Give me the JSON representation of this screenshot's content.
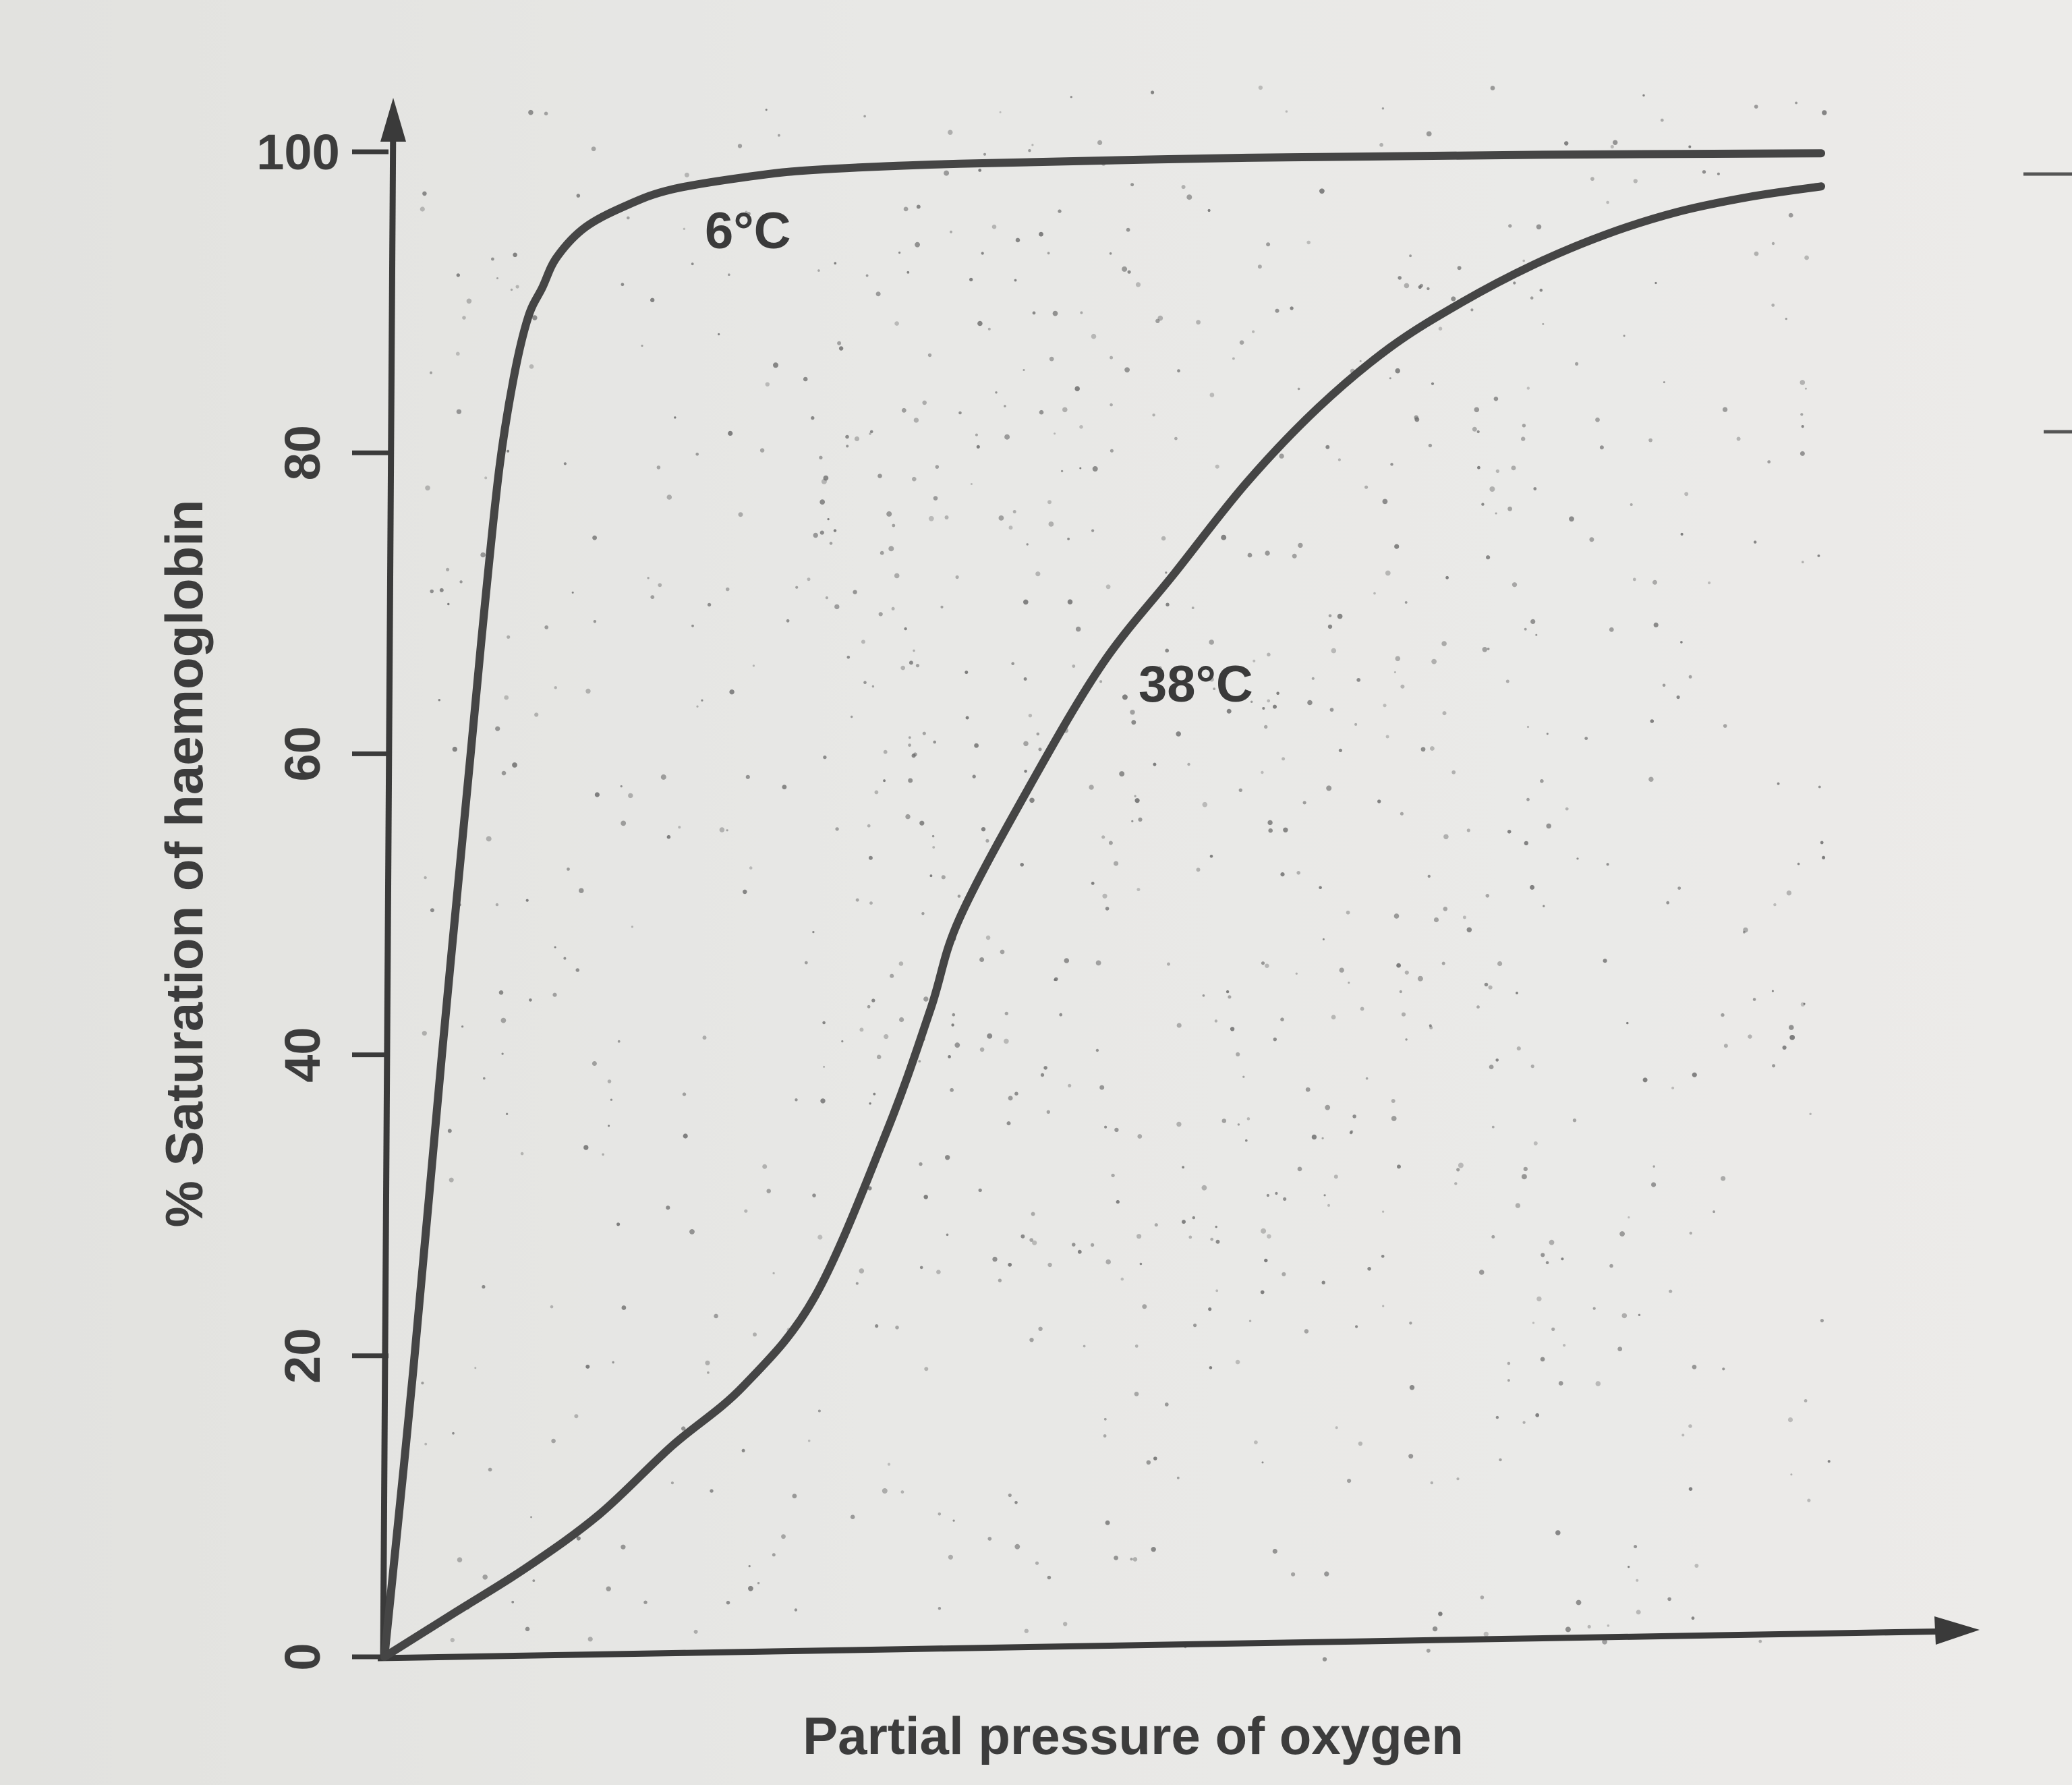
{
  "chart_data": {
    "type": "line",
    "title": "",
    "xlabel": "Partial pressure of oxygen",
    "ylabel": "% Saturation of haemoglobin",
    "ylim": [
      0,
      100
    ],
    "yticks": [
      0,
      20,
      40,
      60,
      80,
      100
    ],
    "xlim": [
      0,
      100
    ],
    "x_ticks_labeled": false,
    "grid": false,
    "legend": "labels placed directly on curves",
    "series": [
      {
        "name": "6°C",
        "color": "#454545",
        "x": [
          0,
          2,
          4,
          6,
          7,
          8,
          9,
          10,
          11,
          12,
          14,
          17,
          20,
          25,
          30,
          40,
          60,
          80,
          100
        ],
        "y": [
          0,
          19,
          40,
          60,
          70,
          79,
          85,
          89,
          91,
          93,
          95,
          96.5,
          97.5,
          98.3,
          98.8,
          99.2,
          99.6,
          99.8,
          99.9
        ]
      },
      {
        "name": "38°C",
        "color": "#454545",
        "x": [
          0,
          5,
          10,
          15,
          20,
          25,
          30,
          35,
          38,
          40,
          45,
          50,
          55,
          60,
          65,
          70,
          75,
          80,
          85,
          90,
          95,
          100
        ],
        "y": [
          0,
          3,
          6,
          9.5,
          14,
          18,
          24,
          35,
          43,
          49,
          58,
          66,
          72,
          78,
          83,
          87,
          90,
          92.5,
          94.5,
          96,
          97,
          97.7
        ]
      }
    ]
  }
}
